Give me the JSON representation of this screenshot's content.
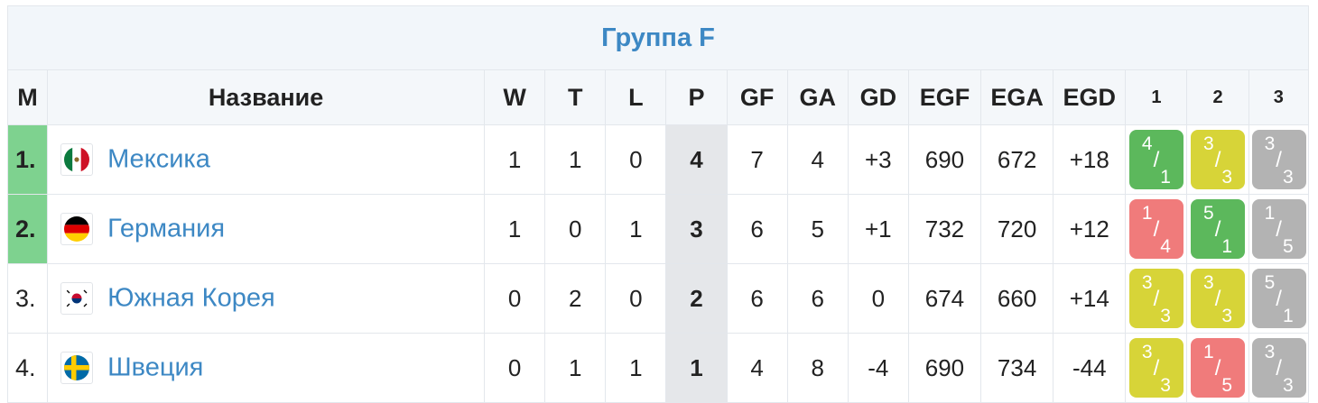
{
  "title": "Группа F",
  "headers": {
    "m": "M",
    "name": "Название",
    "w": "W",
    "t": "T",
    "l": "L",
    "p": "P",
    "gf": "GF",
    "ga": "GA",
    "gd": "GD",
    "egf": "EGF",
    "ega": "EGA",
    "egd": "EGD",
    "r1": "1",
    "r2": "2",
    "r3": "3"
  },
  "colors": {
    "win": "#5cb85c",
    "draw": "#d7d438",
    "loss": "#f07b7b",
    "na": "#b3b3b3",
    "advance": "#7ed28f",
    "accent": "#3d88c4"
  },
  "rows": [
    {
      "pos": "1.",
      "advance": true,
      "flag": "mexico-flag-icon",
      "team": "Мексика",
      "w": "1",
      "t": "1",
      "l": "0",
      "p": "4",
      "gf": "7",
      "ga": "4",
      "gd": "+3",
      "egf": "690",
      "ega": "672",
      "egd": "+18",
      "results": [
        {
          "top": "4",
          "bottom": "1",
          "status": "win"
        },
        {
          "top": "3",
          "bottom": "3",
          "status": "draw"
        },
        {
          "top": "3",
          "bottom": "3",
          "status": "na"
        }
      ]
    },
    {
      "pos": "2.",
      "advance": true,
      "flag": "germany-flag-icon",
      "team": "Германия",
      "w": "1",
      "t": "0",
      "l": "1",
      "p": "3",
      "gf": "6",
      "ga": "5",
      "gd": "+1",
      "egf": "732",
      "ega": "720",
      "egd": "+12",
      "results": [
        {
          "top": "1",
          "bottom": "4",
          "status": "loss"
        },
        {
          "top": "5",
          "bottom": "1",
          "status": "win"
        },
        {
          "top": "1",
          "bottom": "5",
          "status": "na"
        }
      ]
    },
    {
      "pos": "3.",
      "advance": false,
      "flag": "south-korea-flag-icon",
      "team": "Южная Корея",
      "w": "0",
      "t": "2",
      "l": "0",
      "p": "2",
      "gf": "6",
      "ga": "6",
      "gd": "0",
      "egf": "674",
      "ega": "660",
      "egd": "+14",
      "results": [
        {
          "top": "3",
          "bottom": "3",
          "status": "draw"
        },
        {
          "top": "3",
          "bottom": "3",
          "status": "draw"
        },
        {
          "top": "5",
          "bottom": "1",
          "status": "na"
        }
      ]
    },
    {
      "pos": "4.",
      "advance": false,
      "flag": "sweden-flag-icon",
      "team": "Швеция",
      "w": "0",
      "t": "1",
      "l": "1",
      "p": "1",
      "gf": "4",
      "ga": "8",
      "gd": "-4",
      "egf": "690",
      "ega": "734",
      "egd": "-44",
      "results": [
        {
          "top": "3",
          "bottom": "3",
          "status": "draw"
        },
        {
          "top": "1",
          "bottom": "5",
          "status": "loss"
        },
        {
          "top": "3",
          "bottom": "3",
          "status": "na"
        }
      ]
    }
  ]
}
